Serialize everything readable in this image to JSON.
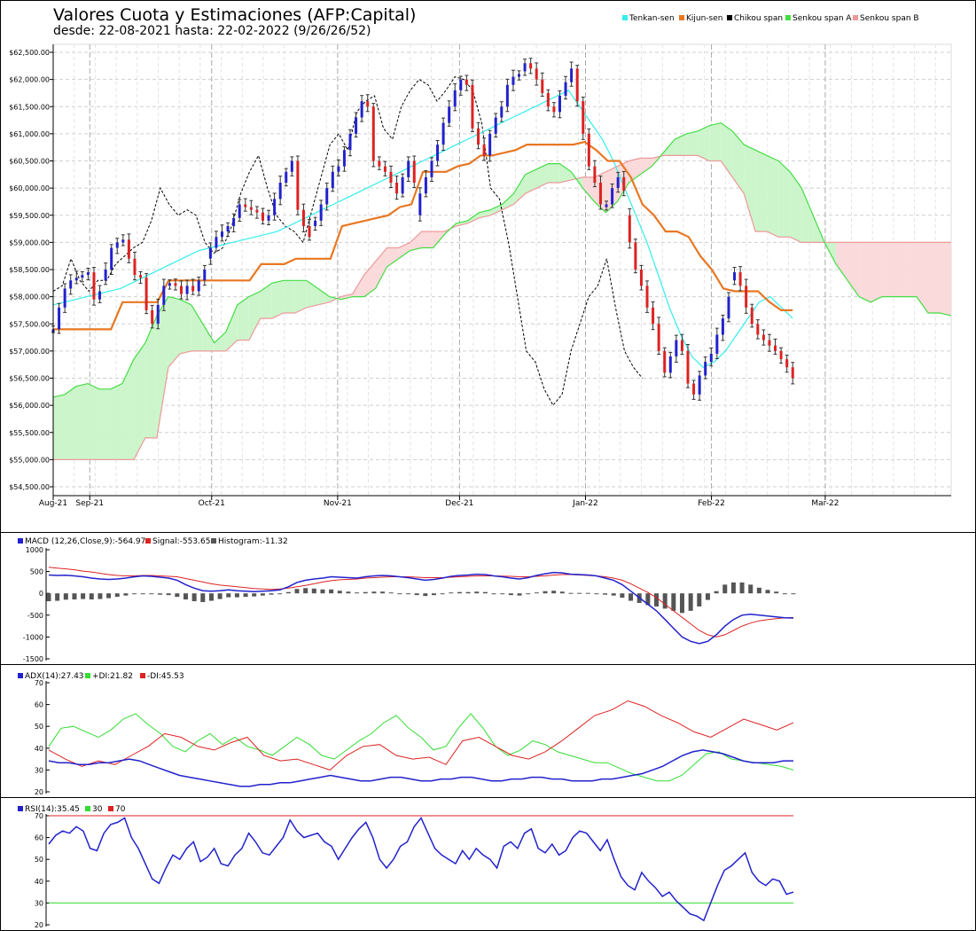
{
  "header": {
    "title": "Valores Cuota y Estimaciones (AFP:Capital)",
    "subtitle": "desde: 22-08-2021 hasta: 22-02-2022 (9/26/26/52)"
  },
  "chart_data": [
    {
      "type": "line",
      "name": "price",
      "legend": [
        "Tenkan-sen",
        "Kijun-sen",
        "Chikou span",
        "Senkou span A",
        "Senkou span B"
      ],
      "colors": {
        "tenkan": "#33eeee",
        "kijun": "#e87722",
        "chikou": "#000000",
        "spanA": "#44dd44",
        "spanB": "#ee9999",
        "up": "#2222cc",
        "down": "#dd2222",
        "cloudUp": "#ccf5cc",
        "cloudDown": "#fadada"
      },
      "ylim": [
        54500,
        62500
      ],
      "yticks": [
        "$62,500.00",
        "$62,000.00",
        "$61,500.00",
        "$61,000.00",
        "$60,500.00",
        "$60,000.00",
        "$59,500.00",
        "$59,000.00",
        "$58,500.00",
        "$58,000.00",
        "$57,500.00",
        "$57,000.00",
        "$56,500.00",
        "$56,000.00",
        "$55,500.00",
        "$55,000.00",
        "$54,500.00"
      ],
      "xticks": [
        "Aug-21",
        "Sep-21",
        "Oct-21",
        "Nov-21",
        "Dec-21",
        "Jan-22",
        "Feb-22",
        "Mar-22"
      ],
      "xtick_days": [
        0,
        9,
        39,
        70,
        100,
        131,
        162,
        190
      ],
      "total_days": 221,
      "last_day": 182,
      "close": [
        57400,
        57800,
        58150,
        58300,
        58350,
        58400,
        58450,
        57950,
        58100,
        58300,
        58500,
        58900,
        59000,
        59050,
        58700,
        58400,
        58350,
        57750,
        57500,
        57850,
        58200,
        58250,
        58200,
        58050,
        58200,
        58100,
        58300,
        58500,
        58700,
        58900,
        59100,
        59200,
        59300,
        59450,
        59700,
        59650,
        59600,
        59550,
        59400,
        59500,
        59800,
        60100,
        60300,
        60500,
        59600,
        59300,
        59100,
        59300,
        59400,
        59700,
        60000,
        60300,
        60400,
        60700,
        61000,
        61300,
        61600,
        61500,
        60500,
        60400,
        60300,
        60100,
        59900,
        60200,
        60500,
        60100,
        59500,
        59900,
        60200,
        60500,
        60800,
        61200,
        61500,
        61800,
        62000,
        61900,
        61100,
        60800,
        60600,
        61000,
        61300,
        61500,
        61900,
        62050,
        62100,
        62150,
        62300,
        62200,
        62000,
        61750,
        61500,
        61400,
        61700,
        61950,
        62200,
        61600,
        61000,
        60400,
        60100,
        59700,
        59700,
        60000,
        60200,
        59950,
        59500,
        59000,
        58500,
        58200,
        57800,
        57500,
        57000,
        56600,
        56900,
        57200,
        57000,
        56400,
        56200,
        56550,
        56800,
        56950,
        57300,
        57600,
        58000,
        58300,
        58450,
        58200,
        57800,
        57500,
        57300,
        57200,
        57100,
        57000,
        56850,
        56700,
        56500,
        56400,
        56400,
        56500,
        56400,
        56300,
        56200,
        56100,
        56050,
        56000,
        56050,
        56100,
        56200,
        56300,
        56400,
        56500,
        56600,
        56700,
        56800,
        56900,
        57000,
        57100,
        57200,
        57300,
        57400,
        57450,
        57500,
        57550,
        57600,
        57650,
        57700,
        57750,
        57800,
        57850,
        57900,
        57950,
        58000,
        58050,
        58100,
        58150,
        58200,
        58250,
        58300,
        58350,
        58400,
        58450,
        58500
      ],
      "tenkan_base": [
        57850,
        57900,
        57950,
        58000,
        58050,
        58100,
        58150,
        58250,
        58350,
        58450,
        58550,
        58650,
        58750,
        58850,
        58900,
        58950,
        59000,
        59050,
        59100,
        59150,
        59200,
        59300,
        59400,
        59500,
        59600,
        59700,
        59800,
        59900,
        60000,
        60100,
        60200,
        60300,
        60400,
        60500,
        60600,
        60700,
        60800,
        60900,
        61000,
        61100,
        61200,
        61300,
        61400,
        61500,
        61600,
        61700,
        61800,
        61500,
        61200,
        60900,
        60500,
        60000,
        59500,
        59000,
        58400,
        57800,
        57300,
        56900,
        56700,
        56800,
        57000,
        57300,
        57600,
        57900,
        58000,
        57800,
        57600
      ],
      "kijun_base": [
        57400,
        57400,
        57400,
        57400,
        57400,
        57400,
        57900,
        57900,
        57900,
        57900,
        58300,
        58300,
        58300,
        58300,
        58300,
        58300,
        58300,
        58300,
        58600,
        58600,
        58600,
        58700,
        58700,
        58700,
        58700,
        59300,
        59350,
        59400,
        59450,
        59500,
        59650,
        59700,
        60300,
        60300,
        60300,
        60400,
        60450,
        60600,
        60600,
        60650,
        60700,
        60800,
        60800,
        60800,
        60800,
        60800,
        60850,
        60700,
        60500,
        60500,
        60200,
        59700,
        59500,
        59200,
        59200,
        59100,
        58750,
        58500,
        58150,
        58100,
        58100,
        58100,
        57900,
        57750,
        57750
      ],
      "spanA": [
        56150,
        56200,
        56350,
        56400,
        56300,
        56300,
        56400,
        56850,
        57150,
        57650,
        58000,
        57950,
        57850,
        57500,
        57150,
        57350,
        57850,
        58000,
        58100,
        58250,
        58300,
        58300,
        58300,
        58150,
        58000,
        57950,
        58000,
        58000,
        58150,
        58550,
        58700,
        58850,
        58900,
        58900,
        59150,
        59350,
        59400,
        59550,
        59600,
        59700,
        59900,
        60250,
        60350,
        60450,
        60450,
        60300,
        60000,
        59750,
        59550,
        59750,
        60100,
        60250,
        60400,
        60650,
        60900,
        61000,
        61050,
        61150,
        61200,
        61050,
        60800,
        60700,
        60600,
        60500,
        60300,
        60000,
        59500,
        59000,
        58600,
        58300,
        58000,
        57900,
        58000,
        58000,
        58000,
        58000,
        57700,
        57700,
        57650
      ],
      "spanB": [
        55000,
        55000,
        55000,
        55000,
        55000,
        55000,
        55000,
        55000,
        55400,
        55400,
        56700,
        56950,
        57000,
        57000,
        57000,
        57000,
        57200,
        57200,
        57600,
        57600,
        57700,
        57700,
        57800,
        57850,
        57900,
        58000,
        58050,
        58400,
        58650,
        58900,
        58900,
        59000,
        59200,
        59200,
        59200,
        59300,
        59350,
        59450,
        59500,
        59600,
        59700,
        59900,
        60000,
        60100,
        60100,
        60150,
        60200,
        60200,
        60300,
        60400,
        60500,
        60550,
        60550,
        60600,
        60600,
        60600,
        60600,
        60500,
        60500,
        60200,
        59900,
        59200,
        59200,
        59100,
        59100,
        59000,
        59000,
        59000,
        59000,
        59000,
        59000,
        59000,
        59000,
        59000,
        59000,
        59000,
        59000,
        59000,
        59000
      ],
      "chikou": [
        58100,
        58200,
        58700,
        58300,
        58100,
        58300,
        58300,
        58600,
        58750,
        58900,
        59000,
        59400,
        60000,
        59700,
        59500,
        59600,
        59500,
        59000,
        58800,
        58900,
        59300,
        59900,
        60300,
        60600,
        60000,
        59500,
        59300,
        59200,
        59000,
        59600,
        60200,
        60800,
        61000,
        60700,
        61400,
        61600,
        61700,
        61100,
        60900,
        61500,
        61800,
        62000,
        61900,
        61600,
        61800,
        62050,
        62000,
        61800,
        61200,
        60000,
        59800,
        59000,
        58000,
        57000,
        56800,
        56300,
        56000,
        56200,
        57000,
        57500,
        58000,
        58200,
        58700,
        57800,
        57000,
        56700,
        56500
      ]
    },
    {
      "type": "bar+line",
      "name": "MACD",
      "legend": [
        "MACD (12,26,Close,9):-564.97",
        "Signal:-553.65",
        "Histogram:-11.32"
      ],
      "ylim": [
        -1500,
        1000
      ],
      "yticks": [
        "1000",
        "500",
        "0",
        "-500",
        "-1000",
        "-1500"
      ],
      "macd": [
        420,
        410,
        415,
        400,
        380,
        350,
        330,
        320,
        330,
        350,
        380,
        400,
        390,
        370,
        350,
        300,
        200,
        120,
        60,
        50,
        60,
        80,
        60,
        50,
        40,
        50,
        60,
        80,
        150,
        250,
        300,
        330,
        350,
        380,
        370,
        360,
        350,
        380,
        400,
        410,
        400,
        380,
        360,
        330,
        300,
        320,
        350,
        390,
        410,
        420,
        440,
        430,
        400,
        380,
        350,
        330,
        360,
        410,
        450,
        480,
        470,
        440,
        430,
        420,
        400,
        350,
        300,
        200,
        50,
        -100,
        -250,
        -400,
        -600,
        -800,
        -1000,
        -1100,
        -1150,
        -1100,
        -950,
        -750,
        -600,
        -500,
        -480,
        -500,
        -520,
        -540,
        -560,
        -565
      ],
      "signal": [
        600,
        580,
        560,
        540,
        510,
        490,
        460,
        430,
        410,
        400,
        400,
        410,
        410,
        400,
        390,
        380,
        340,
        300,
        260,
        220,
        190,
        170,
        150,
        130,
        110,
        100,
        90,
        100,
        120,
        150,
        180,
        220,
        260,
        290,
        310,
        320,
        330,
        350,
        360,
        370,
        380,
        380,
        380,
        370,
        360,
        360,
        360,
        370,
        380,
        390,
        400,
        400,
        400,
        395,
        390,
        380,
        380,
        390,
        400,
        420,
        430,
        430,
        420,
        410,
        400,
        380,
        350,
        300,
        220,
        120,
        20,
        -100,
        -250,
        -400,
        -550,
        -700,
        -850,
        -950,
        -1000,
        -950,
        -850,
        -750,
        -680,
        -630,
        -600,
        -580,
        -560,
        -553
      ],
      "histogram": [
        -180,
        -170,
        -145,
        -140,
        -130,
        -140,
        -130,
        -110,
        -80,
        -50,
        -20,
        -10,
        -20,
        -30,
        -40,
        -80,
        -140,
        -180,
        -200,
        -170,
        -130,
        -90,
        -90,
        -80,
        -70,
        -50,
        -30,
        -20,
        30,
        100,
        120,
        110,
        90,
        90,
        60,
        40,
        20,
        30,
        40,
        40,
        20,
        0,
        -20,
        -40,
        -60,
        -40,
        -10,
        20,
        30,
        30,
        40,
        30,
        0,
        -15,
        -40,
        -50,
        -20,
        20,
        50,
        60,
        40,
        10,
        10,
        10,
        0,
        -30,
        -50,
        -100,
        -170,
        -220,
        -270,
        -300,
        -350,
        -400,
        -450,
        -400,
        -300,
        -150,
        50,
        200,
        250,
        250,
        200,
        130,
        80,
        40,
        0,
        -11
      ]
    },
    {
      "type": "line",
      "name": "ADX",
      "legend": [
        "ADX(14):27.43",
        "+DI:21.82",
        "-DI:45.53"
      ],
      "ylim": [
        10,
        70
      ],
      "yticks": [
        "70",
        "60",
        "50",
        "40",
        "30",
        "20"
      ],
      "adx": [
        27,
        26,
        26,
        25,
        25,
        26,
        26,
        27,
        28,
        27,
        25,
        23,
        21,
        19,
        18,
        17,
        16,
        15,
        14,
        13,
        13,
        14,
        14,
        15,
        15,
        16,
        17,
        18,
        19,
        18,
        17,
        16,
        16,
        17,
        18,
        18,
        17,
        16,
        16,
        17,
        17,
        18,
        18,
        17,
        16,
        16,
        17,
        17,
        18,
        18,
        17,
        17,
        16,
        16,
        16,
        17,
        17,
        18,
        19,
        20,
        22,
        24,
        27,
        30,
        32,
        33,
        32,
        31,
        29,
        27,
        26,
        26,
        26,
        27,
        27
      ],
      "plus_di": [
        35,
        45,
        46,
        43,
        40,
        44,
        50,
        53,
        47,
        42,
        35,
        32,
        38,
        42,
        36,
        40,
        35,
        33,
        30,
        35,
        40,
        36,
        30,
        28,
        33,
        38,
        42,
        48,
        52,
        45,
        40,
        33,
        35,
        45,
        53,
        45,
        35,
        30,
        33,
        38,
        36,
        32,
        30,
        28,
        26,
        26,
        23,
        20,
        18,
        16,
        16,
        19,
        25,
        31,
        32,
        28,
        27,
        26,
        25,
        24,
        22
      ],
      "minus_di": [
        33,
        28,
        24,
        27,
        25,
        30,
        35,
        42,
        40,
        35,
        33,
        37,
        40,
        30,
        27,
        28,
        25,
        22,
        30,
        35,
        36,
        30,
        28,
        29,
        25,
        38,
        40,
        35,
        30,
        28,
        32,
        38,
        45,
        52,
        55,
        60,
        57,
        52,
        48,
        43,
        40,
        45,
        50,
        47,
        44,
        48
      ],
      "plus_di_offset": 0,
      "minus_di_offset": 0
    },
    {
      "type": "line",
      "name": "RSI",
      "legend": [
        "RSI(14):35.45",
        "30",
        "70"
      ],
      "ylim": [
        20,
        70
      ],
      "yticks": [
        "70",
        "60",
        "50",
        "40",
        "30",
        "20"
      ],
      "levels": [
        30,
        70
      ],
      "rsi": [
        57,
        61,
        63,
        62,
        65,
        63,
        55,
        54,
        62,
        66,
        67,
        69,
        60,
        55,
        48,
        41,
        39,
        46,
        52,
        50,
        55,
        58,
        49,
        51,
        55,
        48,
        47,
        52,
        55,
        62,
        58,
        53,
        52,
        56,
        60,
        68,
        63,
        60,
        61,
        62,
        58,
        56,
        50,
        55,
        60,
        64,
        67,
        60,
        50,
        46,
        50,
        56,
        58,
        65,
        69,
        62,
        55,
        52,
        50,
        48,
        54,
        50,
        55,
        52,
        50,
        46,
        56,
        58,
        55,
        62,
        64,
        55,
        53,
        57,
        52,
        54,
        60,
        63,
        62,
        58,
        54,
        59,
        50,
        42,
        38,
        36,
        44,
        40,
        37,
        33,
        35,
        31,
        28,
        25,
        24,
        22,
        30,
        38,
        45,
        47,
        50,
        53,
        44,
        40,
        38,
        41,
        40,
        34,
        35
      ],
      "rsi_last": 35.45
    }
  ]
}
